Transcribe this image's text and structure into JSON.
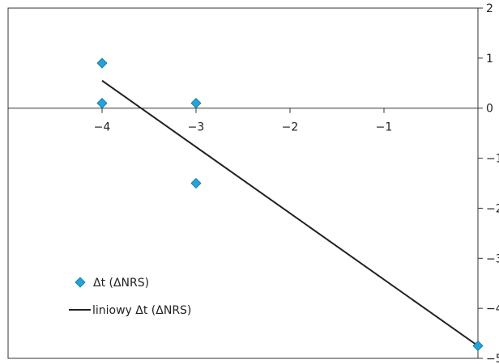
{
  "chart_data": {
    "type": "scatter",
    "xlim": [
      -5,
      0
    ],
    "ylim": [
      -5,
      2
    ],
    "x_ticks": [
      {
        "value": -4,
        "label": "−4"
      },
      {
        "value": -3,
        "label": "−3"
      },
      {
        "value": -2,
        "label": "−2"
      },
      {
        "value": -1,
        "label": "−1"
      }
    ],
    "y_ticks": [
      {
        "value": 2,
        "label": "2"
      },
      {
        "value": 1,
        "label": "1"
      },
      {
        "value": 0,
        "label": "0"
      },
      {
        "value": -1,
        "label": "−1"
      },
      {
        "value": -2,
        "label": "−2"
      },
      {
        "value": -3,
        "label": "−3"
      },
      {
        "value": -4,
        "label": "−4"
      },
      {
        "value": -5,
        "label": "−5"
      }
    ],
    "grid": false,
    "legend_position": "bottom-left",
    "series": [
      {
        "name": "Δt (ΔNRS)",
        "kind": "scatter",
        "marker": "diamond",
        "color": "#1fa5d8",
        "points": [
          {
            "x": -4,
            "y": 0.9
          },
          {
            "x": -4,
            "y": 0.1
          },
          {
            "x": -3,
            "y": 0.1
          },
          {
            "x": -3,
            "y": -1.5
          },
          {
            "x": 0,
            "y": -4.75
          }
        ]
      },
      {
        "name": "liniowy Δt (ΔNRS)",
        "kind": "trendline",
        "color": "#222222",
        "points": [
          {
            "x": -4,
            "y": 0.55
          },
          {
            "x": 0,
            "y": -4.75
          }
        ]
      }
    ]
  }
}
